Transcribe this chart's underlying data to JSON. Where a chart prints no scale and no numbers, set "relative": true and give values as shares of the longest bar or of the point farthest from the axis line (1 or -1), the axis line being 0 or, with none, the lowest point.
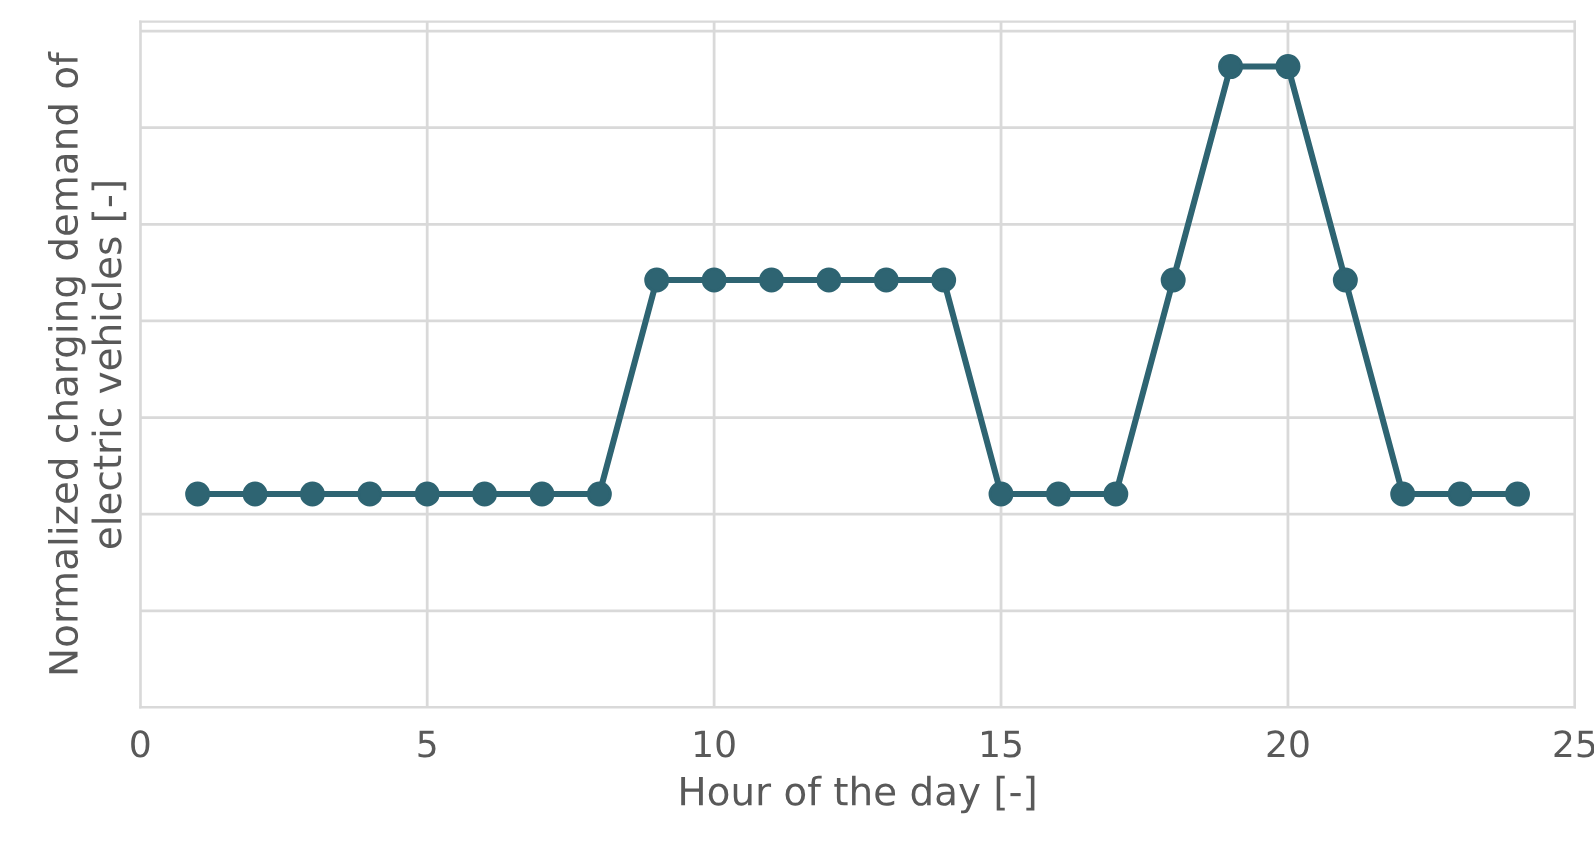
{
  "chart_data": {
    "type": "line",
    "relative": true,
    "xlabel": "Hour of the day [-]",
    "ylabel": "Normalized charging demand of\nelectric vehicles [-]",
    "x": [
      1,
      2,
      3,
      4,
      5,
      6,
      7,
      8,
      9,
      10,
      11,
      12,
      13,
      14,
      15,
      16,
      17,
      18,
      19,
      20,
      21,
      22,
      23,
      24
    ],
    "series": [
      {
        "color": "#2e6472",
        "values": [
          0.333,
          0.333,
          0.333,
          0.333,
          0.333,
          0.333,
          0.333,
          0.333,
          0.667,
          0.667,
          0.667,
          0.667,
          0.667,
          0.667,
          0.333,
          0.333,
          0.333,
          0.667,
          1,
          1,
          0.667,
          0.333,
          0.333,
          0.333
        ]
      }
    ],
    "xlim": [
      0,
      25
    ],
    "xticks": [
      0,
      5,
      10,
      15,
      20,
      25
    ],
    "grid": true,
    "marker": "circle",
    "line_style": "solid",
    "legend": false
  }
}
